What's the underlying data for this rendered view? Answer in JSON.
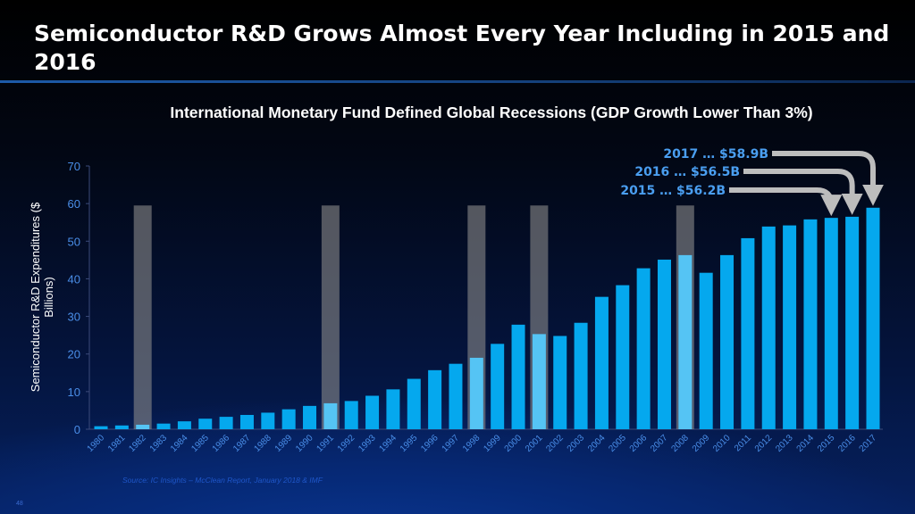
{
  "slide": {
    "title": "Semiconductor R&D Grows Almost Every Year Including in 2015 and 2016",
    "page_number": "48",
    "source": "Source:  IC Insights – McClean Report, January 2018 & IMF"
  },
  "chart_data": {
    "type": "bar",
    "title": "International Monetary Fund Defined Global Recessions (GDP Growth Lower Than 3%)",
    "ylabel": "Semiconductor R&D Expenditures ($ Billions)",
    "xlabel": "",
    "ylim": [
      0,
      70
    ],
    "yticks": [
      0,
      10,
      20,
      30,
      40,
      50,
      60,
      70
    ],
    "grid": false,
    "categories": [
      "1980",
      "1981",
      "1982",
      "1983",
      "1984",
      "1985",
      "1986",
      "1987",
      "1988",
      "1989",
      "1990",
      "1991",
      "1992",
      "1993",
      "1994",
      "1995",
      "1996",
      "1997",
      "1998",
      "1999",
      "2000",
      "2001",
      "2002",
      "2003",
      "2004",
      "2005",
      "2006",
      "2007",
      "2008",
      "2009",
      "2010",
      "2011",
      "2012",
      "2013",
      "2014",
      "2015",
      "2016",
      "2017"
    ],
    "values": [
      0.8,
      1.0,
      1.2,
      1.5,
      2.1,
      2.8,
      3.3,
      3.8,
      4.4,
      5.3,
      6.2,
      6.9,
      7.5,
      8.9,
      10.6,
      13.4,
      15.7,
      17.4,
      19.0,
      22.7,
      27.8,
      25.3,
      24.8,
      28.3,
      35.2,
      38.3,
      42.8,
      45.1,
      46.3,
      41.6,
      46.3,
      50.8,
      53.9,
      54.2,
      55.8,
      56.2,
      56.5,
      58.9
    ],
    "recession_years": [
      "1982",
      "1991",
      "1998",
      "2001",
      "2008"
    ],
    "recession_band_top": 59.5,
    "colors": {
      "bar": "#05a8ee",
      "recession_bar": "#55c4f4",
      "recession_band": "#8a8a8a",
      "annotation": "#4a9ef0",
      "arrow": "#bdbdbd"
    },
    "annotations": [
      {
        "year": "2017",
        "text": "2017 … $58.9B"
      },
      {
        "year": "2016",
        "text": "2016 … $56.5B"
      },
      {
        "year": "2015",
        "text": "2015 … $56.2B"
      }
    ]
  }
}
